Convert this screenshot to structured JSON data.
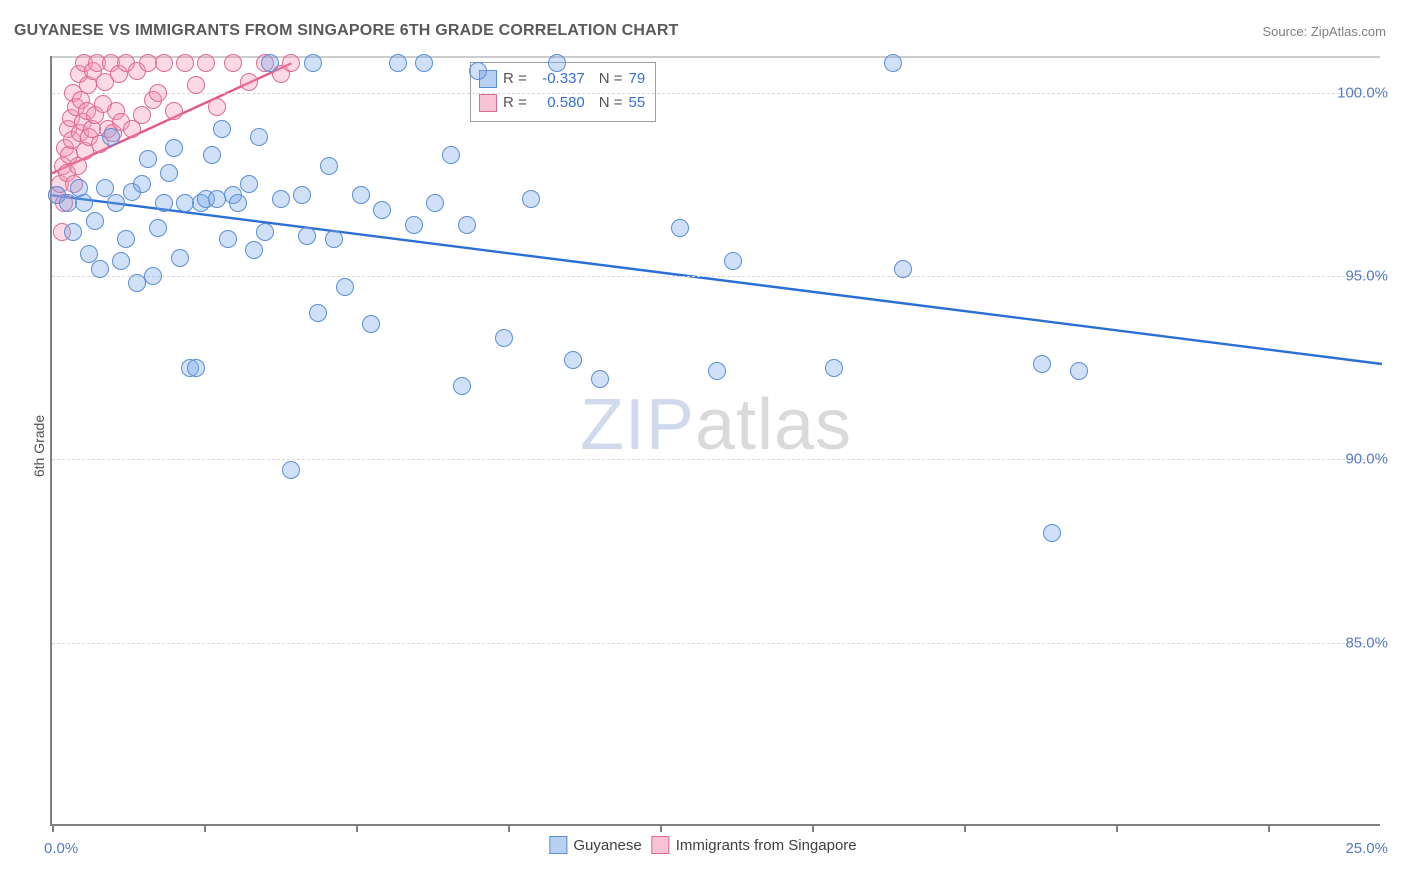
{
  "title": "GUYANESE VS IMMIGRANTS FROM SINGAPORE 6TH GRADE CORRELATION CHART",
  "source_label": "Source: ",
  "source_name": "ZipAtlas.com",
  "ylabel": "6th Grade",
  "watermark_left": "ZIP",
  "watermark_right": "atlas",
  "chart": {
    "type": "scatter",
    "background_color": "#ffffff",
    "grid_color": "#d8d8d8",
    "axis_color": "#808080",
    "xlim": [
      0,
      25
    ],
    "ylim": [
      80,
      101
    ],
    "xticks": [
      0,
      2.86,
      5.71,
      8.57,
      11.43,
      14.29,
      17.14,
      20.0,
      22.86
    ],
    "xlabel_min": "0.0%",
    "xlabel_max": "25.0%",
    "yticks": [
      {
        "v": 100.0,
        "label": "100.0%"
      },
      {
        "v": 95.0,
        "label": "95.0%"
      },
      {
        "v": 90.0,
        "label": "90.0%"
      },
      {
        "v": 85.0,
        "label": "85.0%"
      }
    ],
    "marker_radius": 9,
    "marker_border_width": 1.4,
    "trend_line_width": 2.4,
    "series": [
      {
        "name": "Guyanese",
        "fill": "rgba(120,165,230,0.35)",
        "stroke": "#5b8fd6",
        "swatch_fill": "#b9d1f0",
        "swatch_stroke": "#5b8fd6",
        "R": "-0.337",
        "N": "79",
        "trend": {
          "x1": 0.0,
          "y1": 97.2,
          "x2": 25.0,
          "y2": 92.6,
          "color": "#2a6fd6"
        },
        "points": [
          [
            0.1,
            97.2
          ],
          [
            0.3,
            97.0
          ],
          [
            0.4,
            96.2
          ],
          [
            0.5,
            97.4
          ],
          [
            0.6,
            97.0
          ],
          [
            0.7,
            95.6
          ],
          [
            0.8,
            96.5
          ],
          [
            0.9,
            95.2
          ],
          [
            1.0,
            97.4
          ],
          [
            1.1,
            98.8
          ],
          [
            1.2,
            97.0
          ],
          [
            1.3,
            95.4
          ],
          [
            1.4,
            96.0
          ],
          [
            1.5,
            97.3
          ],
          [
            1.6,
            94.8
          ],
          [
            1.7,
            97.5
          ],
          [
            1.8,
            98.2
          ],
          [
            1.9,
            95.0
          ],
          [
            2.0,
            96.3
          ],
          [
            2.1,
            97.0
          ],
          [
            2.2,
            97.8
          ],
          [
            2.3,
            98.5
          ],
          [
            2.4,
            95.5
          ],
          [
            2.5,
            97.0
          ],
          [
            2.6,
            92.5
          ],
          [
            2.7,
            92.5
          ],
          [
            2.8,
            97.0
          ],
          [
            2.9,
            97.1
          ],
          [
            3.0,
            98.3
          ],
          [
            3.1,
            97.1
          ],
          [
            3.2,
            99.0
          ],
          [
            3.3,
            96.0
          ],
          [
            3.4,
            97.2
          ],
          [
            3.5,
            97.0
          ],
          [
            3.7,
            97.5
          ],
          [
            3.8,
            95.7
          ],
          [
            3.9,
            98.8
          ],
          [
            4.0,
            96.2
          ],
          [
            4.1,
            100.8
          ],
          [
            4.3,
            97.1
          ],
          [
            4.5,
            89.7
          ],
          [
            4.7,
            97.2
          ],
          [
            4.8,
            96.1
          ],
          [
            4.9,
            100.8
          ],
          [
            5.0,
            94.0
          ],
          [
            5.2,
            98.0
          ],
          [
            5.3,
            96.0
          ],
          [
            5.5,
            94.7
          ],
          [
            5.8,
            97.2
          ],
          [
            6.0,
            93.7
          ],
          [
            6.2,
            96.8
          ],
          [
            6.5,
            100.8
          ],
          [
            6.8,
            96.4
          ],
          [
            7.0,
            100.8
          ],
          [
            7.2,
            97.0
          ],
          [
            7.5,
            98.3
          ],
          [
            7.7,
            92.0
          ],
          [
            7.8,
            96.4
          ],
          [
            8.0,
            100.6
          ],
          [
            8.5,
            93.3
          ],
          [
            9.0,
            97.1
          ],
          [
            9.5,
            100.8
          ],
          [
            9.8,
            92.7
          ],
          [
            10.3,
            92.2
          ],
          [
            11.8,
            96.3
          ],
          [
            12.5,
            92.4
          ],
          [
            12.8,
            95.4
          ],
          [
            14.7,
            92.5
          ],
          [
            15.8,
            100.8
          ],
          [
            16.0,
            95.2
          ],
          [
            18.6,
            92.6
          ],
          [
            18.8,
            88.0
          ],
          [
            19.3,
            92.4
          ]
        ]
      },
      {
        "name": "Immigrants from Singapore",
        "fill": "rgba(244,150,180,0.35)",
        "stroke": "#e06a94",
        "swatch_fill": "#f6c3d4",
        "swatch_stroke": "#e06a94",
        "R": "0.580",
        "N": "55",
        "trend": {
          "x1": 0.0,
          "y1": 97.8,
          "x2": 4.5,
          "y2": 100.8,
          "color": "#e3588c"
        },
        "points": [
          [
            0.1,
            97.2
          ],
          [
            0.15,
            97.5
          ],
          [
            0.18,
            96.2
          ],
          [
            0.2,
            98.0
          ],
          [
            0.22,
            97.0
          ],
          [
            0.25,
            98.5
          ],
          [
            0.28,
            97.8
          ],
          [
            0.3,
            99.0
          ],
          [
            0.32,
            98.3
          ],
          [
            0.35,
            99.3
          ],
          [
            0.38,
            98.7
          ],
          [
            0.4,
            100.0
          ],
          [
            0.42,
            97.5
          ],
          [
            0.45,
            99.6
          ],
          [
            0.48,
            98.0
          ],
          [
            0.5,
            100.5
          ],
          [
            0.52,
            98.9
          ],
          [
            0.55,
            99.8
          ],
          [
            0.58,
            99.2
          ],
          [
            0.6,
            100.8
          ],
          [
            0.62,
            98.4
          ],
          [
            0.65,
            99.5
          ],
          [
            0.68,
            100.2
          ],
          [
            0.7,
            98.8
          ],
          [
            0.75,
            99.0
          ],
          [
            0.78,
            100.6
          ],
          [
            0.8,
            99.4
          ],
          [
            0.85,
            100.8
          ],
          [
            0.9,
            98.6
          ],
          [
            0.95,
            99.7
          ],
          [
            1.0,
            100.3
          ],
          [
            1.05,
            99.0
          ],
          [
            1.1,
            100.8
          ],
          [
            1.15,
            98.9
          ],
          [
            1.2,
            99.5
          ],
          [
            1.25,
            100.5
          ],
          [
            1.3,
            99.2
          ],
          [
            1.4,
            100.8
          ],
          [
            1.5,
            99.0
          ],
          [
            1.6,
            100.6
          ],
          [
            1.7,
            99.4
          ],
          [
            1.8,
            100.8
          ],
          [
            1.9,
            99.8
          ],
          [
            2.0,
            100.0
          ],
          [
            2.1,
            100.8
          ],
          [
            2.3,
            99.5
          ],
          [
            2.5,
            100.8
          ],
          [
            2.7,
            100.2
          ],
          [
            2.9,
            100.8
          ],
          [
            3.1,
            99.6
          ],
          [
            3.4,
            100.8
          ],
          [
            3.7,
            100.3
          ],
          [
            4.0,
            100.8
          ],
          [
            4.3,
            100.5
          ],
          [
            4.5,
            100.8
          ]
        ]
      }
    ]
  },
  "legend_stats": {
    "R_label": "R",
    "N_label": "N",
    "eq": "="
  },
  "bottom_legend": {
    "items": [
      "Guyanese",
      "Immigrants from Singapore"
    ]
  }
}
